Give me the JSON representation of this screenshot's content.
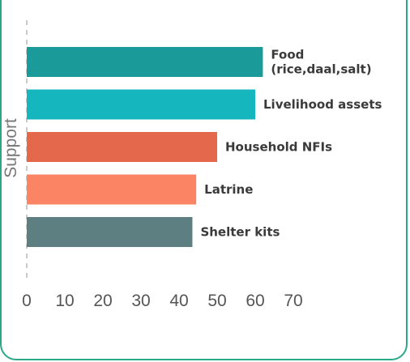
{
  "chart_data": {
    "type": "bar",
    "orientation": "horizontal",
    "ylabel": "Support",
    "xlabel": "",
    "xlim": [
      0,
      70
    ],
    "xticks": [
      0,
      10,
      20,
      30,
      40,
      50,
      60,
      70
    ],
    "categories": [
      [
        "Food",
        "(rice,daal,salt)"
      ],
      [
        "Livelihood assets"
      ],
      [
        "Household NFIs"
      ],
      [
        "Latrine"
      ],
      [
        "Shelter kits"
      ]
    ],
    "values": [
      62,
      60,
      50,
      44.5,
      43.5
    ],
    "colors": [
      "#1b9a9a",
      "#16b6bf",
      "#e4694c",
      "#fa8463",
      "#5d7f82"
    ],
    "grid": false,
    "legend": "none"
  }
}
